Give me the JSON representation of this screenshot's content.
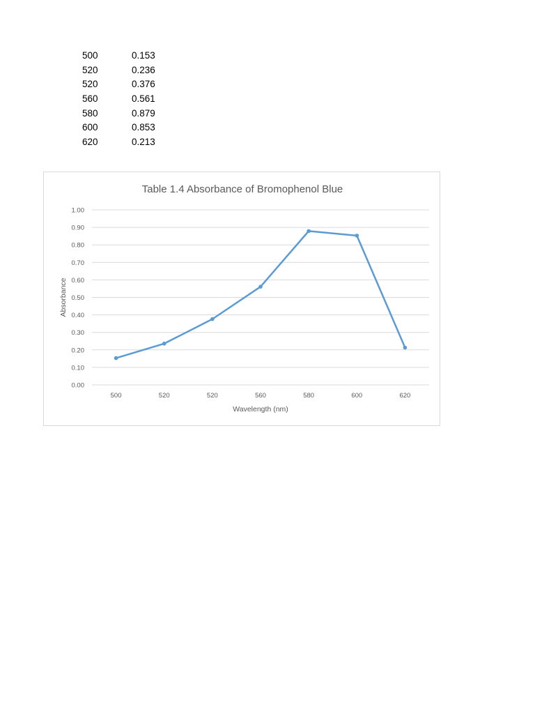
{
  "table": {
    "rows": [
      {
        "wavelength": "500",
        "absorbance": "0.153"
      },
      {
        "wavelength": "520",
        "absorbance": "0.236"
      },
      {
        "wavelength": "520",
        "absorbance": "0.376"
      },
      {
        "wavelength": "560",
        "absorbance": "0.561"
      },
      {
        "wavelength": "580",
        "absorbance": "0.879"
      },
      {
        "wavelength": "600",
        "absorbance": "0.853"
      },
      {
        "wavelength": "620",
        "absorbance": "0.213"
      }
    ]
  },
  "chart_data": {
    "type": "line",
    "title": "Table 1.4 Absorbance  of Bromophenol  Blue",
    "xlabel": "Wavelength (nm)",
    "ylabel": "Absorbance",
    "categories": [
      "500",
      "520",
      "520",
      "560",
      "580",
      "600",
      "620"
    ],
    "series": [
      {
        "values": [
          0.153,
          0.236,
          0.376,
          0.561,
          0.879,
          0.853,
          0.213
        ],
        "color": "#5b9bd5"
      }
    ],
    "ylim": [
      0,
      1.0
    ],
    "yticks": [
      "0.00",
      "0.10",
      "0.20",
      "0.30",
      "0.40",
      "0.50",
      "0.60",
      "0.70",
      "0.80",
      "0.90",
      "1.00"
    ],
    "grid": true,
    "legend": "none",
    "gridline_color": "#d9d9d9"
  }
}
